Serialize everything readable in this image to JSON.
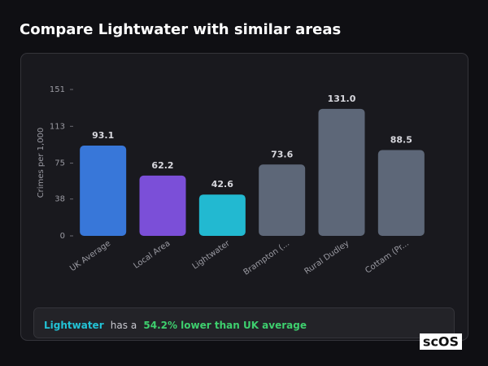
{
  "page_title": "Compare Lightwater with similar areas",
  "chart_data": {
    "type": "bar",
    "y_label": "Crimes per 1,000",
    "categories": [
      "UK Average",
      "Local Area",
      "Lightwater",
      "Brampton (...",
      "Rural Dudley",
      "Cottam (Pr..."
    ],
    "values": [
      93.1,
      62.2,
      42.6,
      73.6,
      131.0,
      88.5
    ],
    "value_labels": [
      "93.1",
      "62.2",
      "42.6",
      "73.6",
      "131.0",
      "88.5"
    ],
    "colors": [
      "#3877d9",
      "#7b4fd8",
      "#22b9d1",
      "#5d6778",
      "#5d6778",
      "#5d6778"
    ],
    "ylim": [
      0,
      151
    ],
    "yticks": [
      0,
      38,
      75,
      113,
      151
    ],
    "grid": false
  },
  "summary": {
    "highlight": "Lightwater",
    "text": "has a",
    "comparison": "54.2% lower than UK average"
  },
  "logo": "scOS"
}
